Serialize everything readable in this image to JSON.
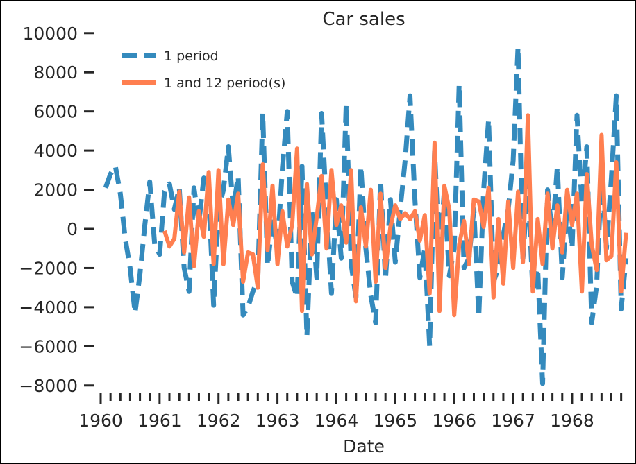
{
  "chart_data": {
    "type": "line",
    "title": "Car sales",
    "xlabel": "Date",
    "ylabel": "",
    "x_ticks": [
      "1960",
      "1961",
      "1962",
      "1963",
      "1964",
      "1965",
      "1966",
      "1967",
      "1968"
    ],
    "y_ticks": [
      "10000",
      "8000",
      "6000",
      "4000",
      "2000",
      "0",
      "−2000",
      "−4000",
      "−6000",
      "−8000"
    ],
    "xlim": [
      1960.0,
      1968.92
    ],
    "ylim": [
      -8200,
      10300
    ],
    "legend_position": "top-left",
    "grid": false,
    "series": [
      {
        "name": "1 period",
        "color": "#348ABD",
        "style": "dashed",
        "values": [
          [
            1960.0833,
            2100
          ],
          [
            1960.1667,
            2800
          ],
          [
            1960.25,
            3200
          ],
          [
            1960.3333,
            1800
          ],
          [
            1960.4167,
            -500
          ],
          [
            1960.5,
            -2000
          ],
          [
            1960.5833,
            -4300
          ],
          [
            1960.6667,
            -2300
          ],
          [
            1960.75,
            200
          ],
          [
            1960.8333,
            2400
          ],
          [
            1960.9167,
            -800
          ],
          [
            1961.0,
            -1300
          ],
          [
            1961.0833,
            1900
          ],
          [
            1961.1667,
            2300
          ],
          [
            1961.25,
            1000
          ],
          [
            1961.3333,
            2100
          ],
          [
            1961.4167,
            -2000
          ],
          [
            1961.5,
            -3200
          ],
          [
            1961.5833,
            2100
          ],
          [
            1961.6667,
            300
          ],
          [
            1961.75,
            2600
          ],
          [
            1961.8333,
            1800
          ],
          [
            1961.9167,
            -3900
          ],
          [
            1962.0,
            1000
          ],
          [
            1962.0833,
            2000
          ],
          [
            1962.1667,
            4200
          ],
          [
            1962.25,
            1000
          ],
          [
            1962.3333,
            2700
          ],
          [
            1962.4167,
            -4400
          ],
          [
            1962.5,
            -4000
          ],
          [
            1962.5833,
            -3200
          ],
          [
            1962.6667,
            -2600
          ],
          [
            1962.75,
            5900
          ],
          [
            1962.8333,
            -1900
          ],
          [
            1962.9167,
            500
          ],
          [
            1963.0,
            -1000
          ],
          [
            1963.0833,
            3100
          ],
          [
            1963.1667,
            6000
          ],
          [
            1963.25,
            -2700
          ],
          [
            1963.3333,
            -3500
          ],
          [
            1963.4167,
            3200
          ],
          [
            1963.5,
            -5500
          ],
          [
            1963.5833,
            900
          ],
          [
            1963.6667,
            -2500
          ],
          [
            1963.75,
            5900
          ],
          [
            1963.8333,
            1000
          ],
          [
            1963.9167,
            -3300
          ],
          [
            1964.0,
            1500
          ],
          [
            1964.0833,
            -1500
          ],
          [
            1964.1667,
            6400
          ],
          [
            1964.25,
            -1800
          ],
          [
            1964.3333,
            -3500
          ],
          [
            1964.4167,
            3200
          ],
          [
            1964.5,
            -1000
          ],
          [
            1964.5833,
            -3400
          ],
          [
            1964.6667,
            -4800
          ],
          [
            1964.75,
            2500
          ],
          [
            1964.8333,
            -2600
          ],
          [
            1964.9167,
            1500
          ],
          [
            1965.0,
            -1700
          ],
          [
            1965.0833,
            1000
          ],
          [
            1965.1667,
            3500
          ],
          [
            1965.25,
            6800
          ],
          [
            1965.3333,
            1500
          ],
          [
            1965.4167,
            -2500
          ],
          [
            1965.5,
            -1000
          ],
          [
            1965.5833,
            -6000
          ],
          [
            1965.6667,
            4000
          ],
          [
            1965.75,
            -1500
          ],
          [
            1965.8333,
            2000
          ],
          [
            1965.9167,
            -2400
          ],
          [
            1966.0,
            -1000
          ],
          [
            1966.0833,
            7400
          ],
          [
            1966.1667,
            -2000
          ],
          [
            1966.25,
            -1500
          ],
          [
            1966.3333,
            1000
          ],
          [
            1966.4167,
            -4500
          ],
          [
            1966.5,
            2000
          ],
          [
            1966.5833,
            5600
          ],
          [
            1966.6667,
            -2700
          ],
          [
            1966.75,
            -2000
          ],
          [
            1966.8333,
            -300
          ],
          [
            1966.9167,
            1000
          ],
          [
            1967.0,
            3500
          ],
          [
            1967.0833,
            9300
          ],
          [
            1967.1667,
            -1500
          ],
          [
            1967.25,
            2500
          ],
          [
            1967.3333,
            -3200
          ],
          [
            1967.4167,
            -2000
          ],
          [
            1967.5,
            -7900
          ],
          [
            1967.5833,
            2000
          ],
          [
            1967.6667,
            -300
          ],
          [
            1967.75,
            3200
          ],
          [
            1967.8333,
            -2500
          ],
          [
            1967.9167,
            1200
          ],
          [
            1968.0,
            -1000
          ],
          [
            1968.0833,
            5800
          ],
          [
            1968.1667,
            1200
          ],
          [
            1968.25,
            4200
          ],
          [
            1968.3333,
            -4800
          ],
          [
            1968.4167,
            -2900
          ],
          [
            1968.5,
            3000
          ],
          [
            1968.5833,
            -1000
          ],
          [
            1968.6667,
            2600
          ],
          [
            1968.75,
            6800
          ],
          [
            1968.8333,
            -4100
          ],
          [
            1968.9167,
            -1500
          ]
        ]
      },
      {
        "name": "1 and 12 period(s)",
        "color": "#FF7F50",
        "style": "solid",
        "values": [
          [
            1961.0833,
            -100
          ],
          [
            1961.1667,
            -900
          ],
          [
            1961.25,
            -500
          ],
          [
            1961.3333,
            1900
          ],
          [
            1961.4167,
            -1200
          ],
          [
            1961.5,
            1600
          ],
          [
            1961.5833,
            -1900
          ],
          [
            1961.6667,
            900
          ],
          [
            1961.75,
            -400
          ],
          [
            1961.8333,
            2900
          ],
          [
            1961.9167,
            -1800
          ],
          [
            1962.0,
            3000
          ],
          [
            1962.0833,
            -1800
          ],
          [
            1962.1667,
            1500
          ],
          [
            1962.25,
            200
          ],
          [
            1962.3333,
            1800
          ],
          [
            1962.4167,
            -2700
          ],
          [
            1962.5,
            -1200
          ],
          [
            1962.5833,
            -1300
          ],
          [
            1962.6667,
            -3000
          ],
          [
            1962.75,
            3300
          ],
          [
            1962.8333,
            -1100
          ],
          [
            1962.9167,
            2200
          ],
          [
            1963.0,
            -1800
          ],
          [
            1963.0833,
            900
          ],
          [
            1963.1667,
            -900
          ],
          [
            1963.25,
            200
          ],
          [
            1963.3333,
            4100
          ],
          [
            1963.4167,
            -4200
          ],
          [
            1963.5,
            2300
          ],
          [
            1963.5833,
            -1300
          ],
          [
            1963.6667,
            600
          ],
          [
            1963.75,
            2700
          ],
          [
            1963.8333,
            -1000
          ],
          [
            1963.9167,
            3000
          ],
          [
            1964.0,
            200
          ],
          [
            1964.0833,
            1200
          ],
          [
            1964.1667,
            -700
          ],
          [
            1964.25,
            3000
          ],
          [
            1964.3333,
            -3700
          ],
          [
            1964.4167,
            1100
          ],
          [
            1964.5,
            -900
          ],
          [
            1964.5833,
            2000
          ],
          [
            1964.6667,
            -2700
          ],
          [
            1964.75,
            1800
          ],
          [
            1964.8333,
            -2000
          ],
          [
            1964.9167,
            100
          ],
          [
            1965.0,
            1200
          ],
          [
            1965.0833,
            500
          ],
          [
            1965.1667,
            800
          ],
          [
            1965.25,
            500
          ],
          [
            1965.3333,
            900
          ],
          [
            1965.4167,
            -600
          ],
          [
            1965.5,
            700
          ],
          [
            1965.5833,
            -3300
          ],
          [
            1965.6667,
            4400
          ],
          [
            1965.75,
            -4200
          ],
          [
            1965.8333,
            2200
          ],
          [
            1965.9167,
            1000
          ],
          [
            1966.0,
            -4400
          ],
          [
            1966.0833,
            -800
          ],
          [
            1966.1667,
            400
          ],
          [
            1966.25,
            -1800
          ],
          [
            1966.3333,
            1500
          ],
          [
            1966.4167,
            1400
          ],
          [
            1966.5,
            100
          ],
          [
            1966.5833,
            2100
          ],
          [
            1966.6667,
            -3500
          ],
          [
            1966.75,
            500
          ],
          [
            1966.8333,
            -2800
          ],
          [
            1966.9167,
            1400
          ],
          [
            1967.0,
            -2000
          ],
          [
            1967.0833,
            1900
          ],
          [
            1967.1667,
            -1700
          ],
          [
            1967.25,
            5800
          ],
          [
            1967.3333,
            -3200
          ],
          [
            1967.4167,
            500
          ],
          [
            1967.5,
            -1800
          ],
          [
            1967.5833,
            1800
          ],
          [
            1967.6667,
            -1000
          ],
          [
            1967.75,
            1200
          ],
          [
            1967.8333,
            -1200
          ],
          [
            1967.9167,
            2000
          ],
          [
            1968.0,
            200
          ],
          [
            1968.0833,
            1800
          ],
          [
            1968.1667,
            -3200
          ],
          [
            1968.25,
            2800
          ],
          [
            1968.3333,
            -800
          ],
          [
            1968.4167,
            -2100
          ],
          [
            1968.5,
            4800
          ],
          [
            1968.5833,
            -1600
          ],
          [
            1968.6667,
            -1400
          ],
          [
            1968.75,
            3400
          ],
          [
            1968.8333,
            -3200
          ],
          [
            1968.9167,
            -200
          ]
        ]
      }
    ]
  }
}
